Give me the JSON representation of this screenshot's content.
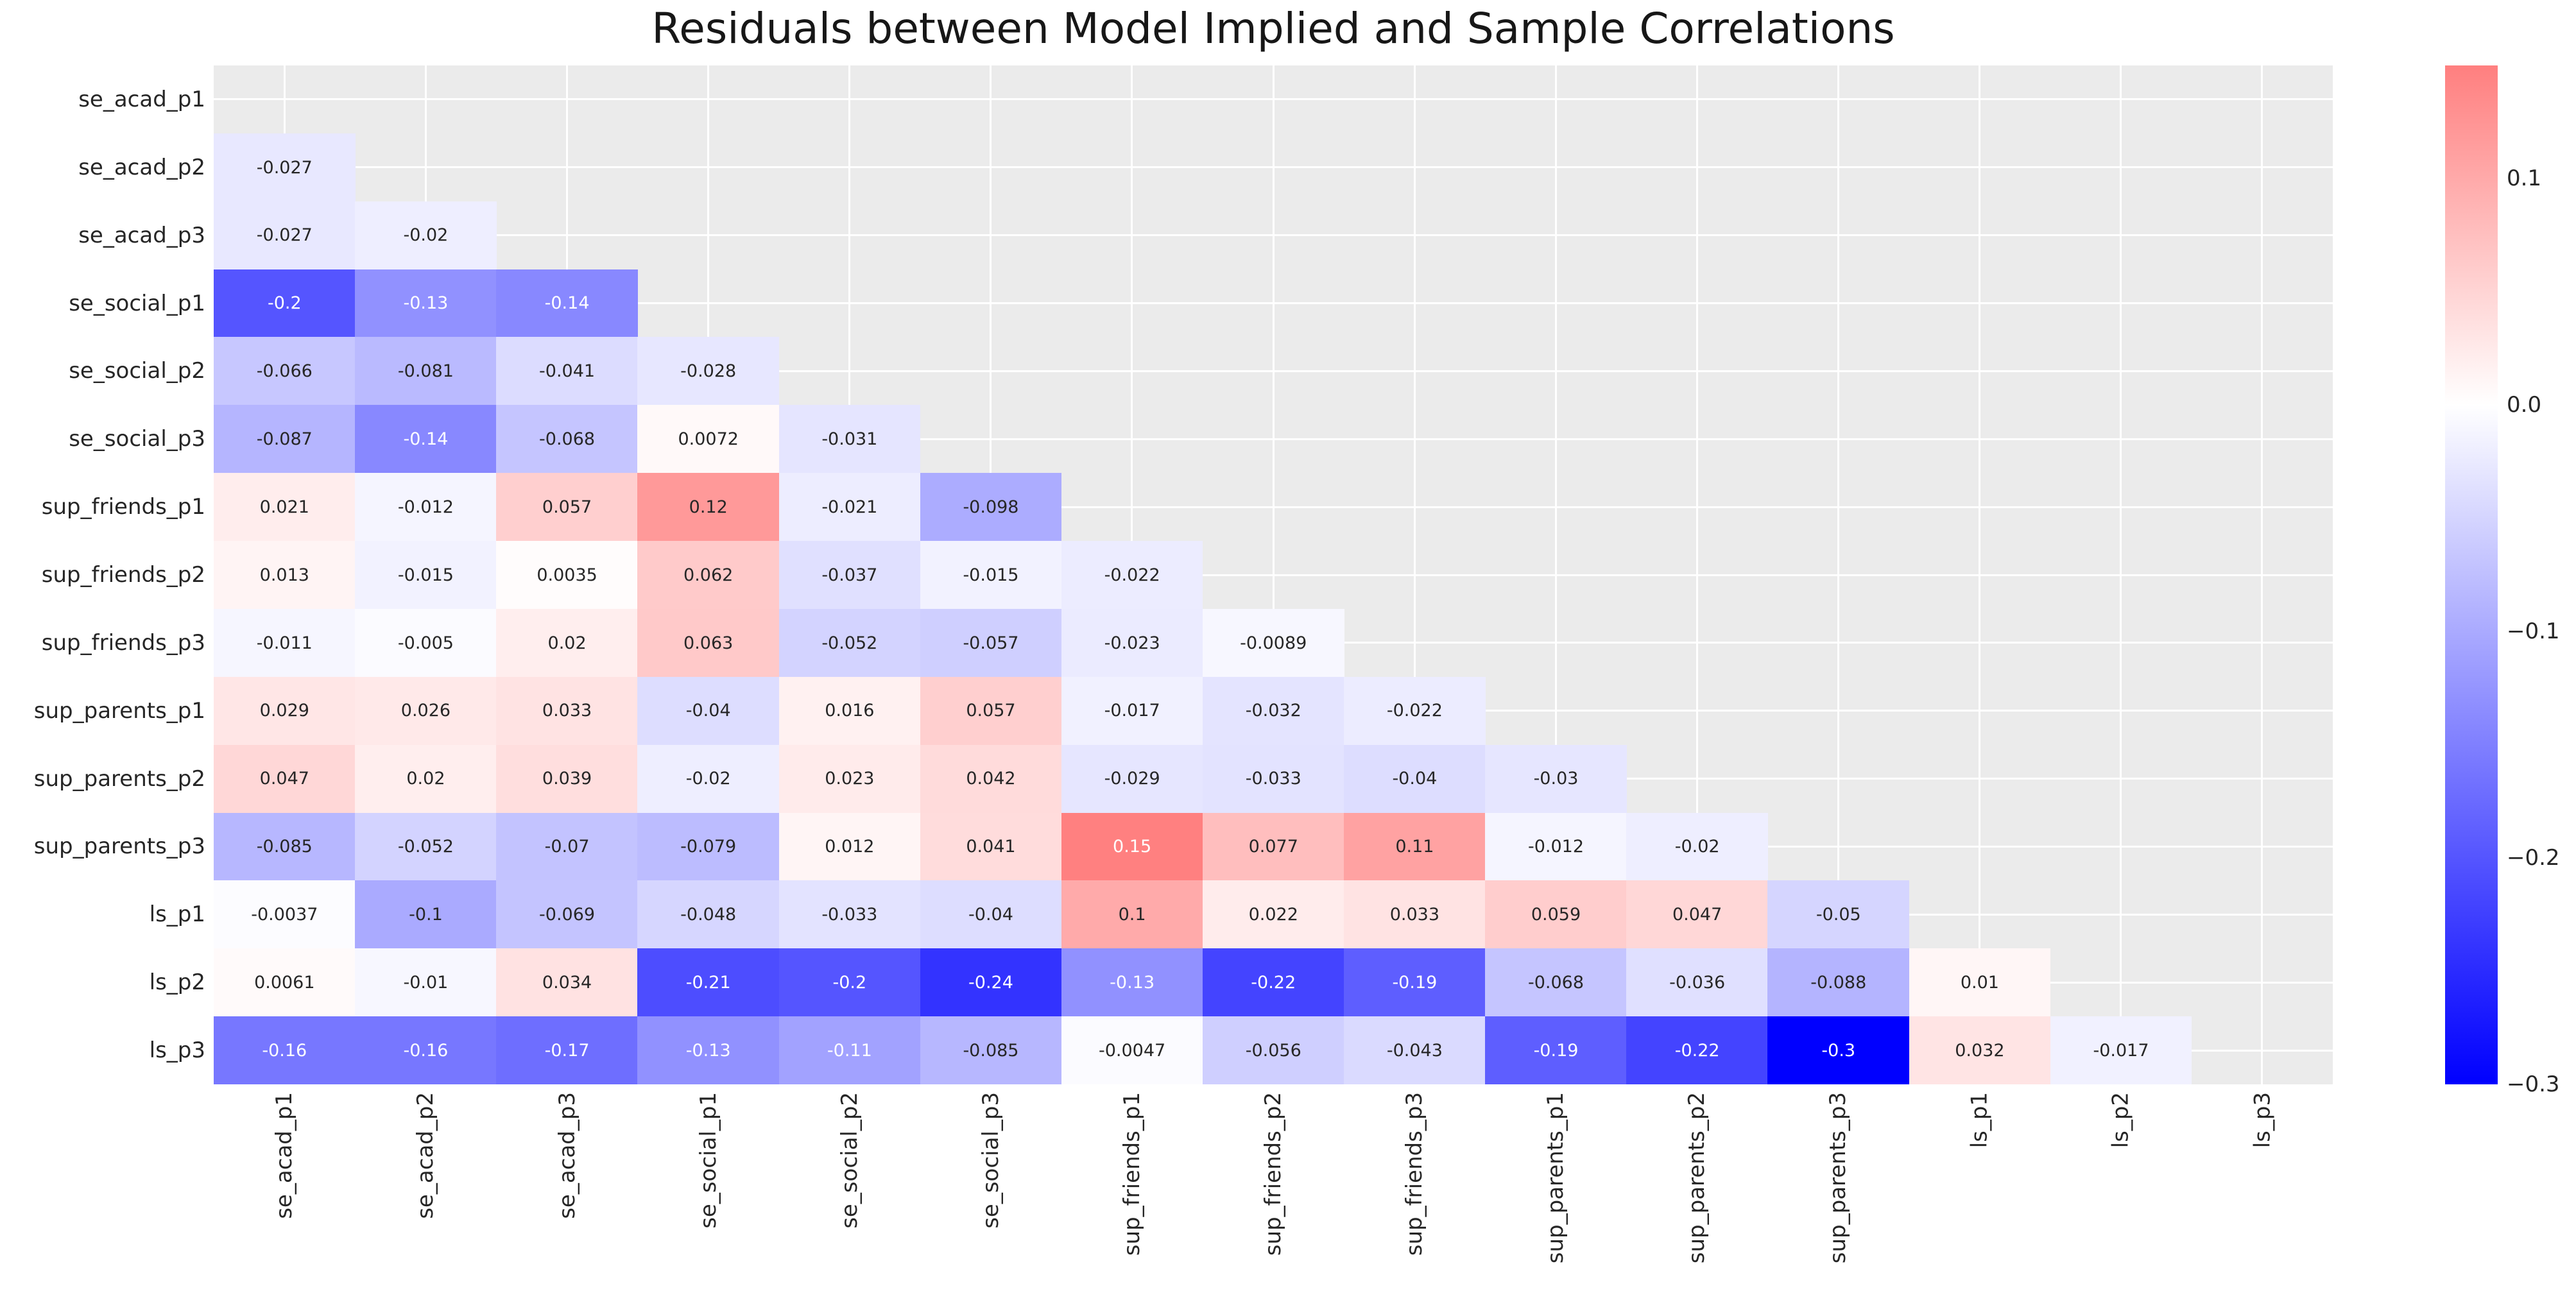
{
  "title": "Residuals between Model Implied and Sample Correlations",
  "chart_data": {
    "type": "heatmap",
    "title": "Residuals between Model Implied and Sample Correlations",
    "variables": [
      "se_acad_p1",
      "se_acad_p2",
      "se_acad_p3",
      "se_social_p1",
      "se_social_p2",
      "se_social_p3",
      "sup_friends_p1",
      "sup_friends_p2",
      "sup_friends_p3",
      "sup_parents_p1",
      "sup_parents_p2",
      "sup_parents_p3",
      "ls_p1",
      "ls_p2",
      "ls_p3"
    ],
    "mask": "upper-triangle-including-diagonal",
    "matrix": [
      [
        null,
        null,
        null,
        null,
        null,
        null,
        null,
        null,
        null,
        null,
        null,
        null,
        null,
        null,
        null
      ],
      [
        -0.027,
        null,
        null,
        null,
        null,
        null,
        null,
        null,
        null,
        null,
        null,
        null,
        null,
        null,
        null
      ],
      [
        -0.027,
        -0.02,
        null,
        null,
        null,
        null,
        null,
        null,
        null,
        null,
        null,
        null,
        null,
        null,
        null
      ],
      [
        -0.2,
        -0.13,
        -0.14,
        null,
        null,
        null,
        null,
        null,
        null,
        null,
        null,
        null,
        null,
        null,
        null
      ],
      [
        -0.066,
        -0.081,
        -0.041,
        -0.028,
        null,
        null,
        null,
        null,
        null,
        null,
        null,
        null,
        null,
        null,
        null
      ],
      [
        -0.087,
        -0.14,
        -0.068,
        0.0072,
        -0.031,
        null,
        null,
        null,
        null,
        null,
        null,
        null,
        null,
        null,
        null
      ],
      [
        0.021,
        -0.012,
        0.057,
        0.12,
        -0.021,
        -0.098,
        null,
        null,
        null,
        null,
        null,
        null,
        null,
        null,
        null
      ],
      [
        0.013,
        -0.015,
        0.0035,
        0.062,
        -0.037,
        -0.015,
        -0.022,
        null,
        null,
        null,
        null,
        null,
        null,
        null,
        null
      ],
      [
        -0.011,
        -0.005,
        0.02,
        0.063,
        -0.052,
        -0.057,
        -0.023,
        -0.0089,
        null,
        null,
        null,
        null,
        null,
        null,
        null
      ],
      [
        0.029,
        0.026,
        0.033,
        -0.04,
        0.016,
        0.057,
        -0.017,
        -0.032,
        -0.022,
        null,
        null,
        null,
        null,
        null,
        null
      ],
      [
        0.047,
        0.02,
        0.039,
        -0.02,
        0.023,
        0.042,
        -0.029,
        -0.033,
        -0.04,
        -0.03,
        null,
        null,
        null,
        null,
        null
      ],
      [
        -0.085,
        -0.052,
        -0.07,
        -0.079,
        0.012,
        0.041,
        0.15,
        0.077,
        0.11,
        -0.012,
        -0.02,
        null,
        null,
        null,
        null
      ],
      [
        -0.0037,
        -0.1,
        -0.069,
        -0.048,
        -0.033,
        -0.04,
        0.1,
        0.022,
        0.033,
        0.059,
        0.047,
        -0.05,
        null,
        null,
        null
      ],
      [
        0.0061,
        -0.01,
        0.034,
        -0.21,
        -0.2,
        -0.24,
        -0.13,
        -0.22,
        -0.19,
        -0.068,
        -0.036,
        -0.088,
        0.01,
        null,
        null
      ],
      [
        -0.16,
        -0.16,
        -0.17,
        -0.13,
        -0.11,
        -0.085,
        -0.0047,
        -0.056,
        -0.043,
        -0.19,
        -0.22,
        -0.3,
        0.032,
        -0.017,
        null
      ]
    ],
    "vmin": -0.3,
    "vmax": 0.15,
    "center": 0,
    "colormap": "bwr (blue-white-red), white at 0, truncated so max red at 0.15",
    "colorbar_ticks": [
      "0.1",
      "0.0",
      "−0.1",
      "−0.2",
      "−0.3"
    ],
    "colorbar_tick_values": [
      0.1,
      0.0,
      -0.1,
      -0.2,
      -0.3
    ],
    "legend_position": "right colorbar",
    "grid": "white gridlines at tick centers, visible on masked gray background",
    "colors": {
      "plot_background": "#ebebeb",
      "grid_color": "#ffffff",
      "colorbar_top_color": "rgb(255,127,127)",
      "colorbar_mid_color": "#ffffff",
      "colorbar_bottom_color": "rgb(0,0,255)",
      "annotation_dark_color": "#262626",
      "annotation_light_color": "#ffffff"
    }
  }
}
